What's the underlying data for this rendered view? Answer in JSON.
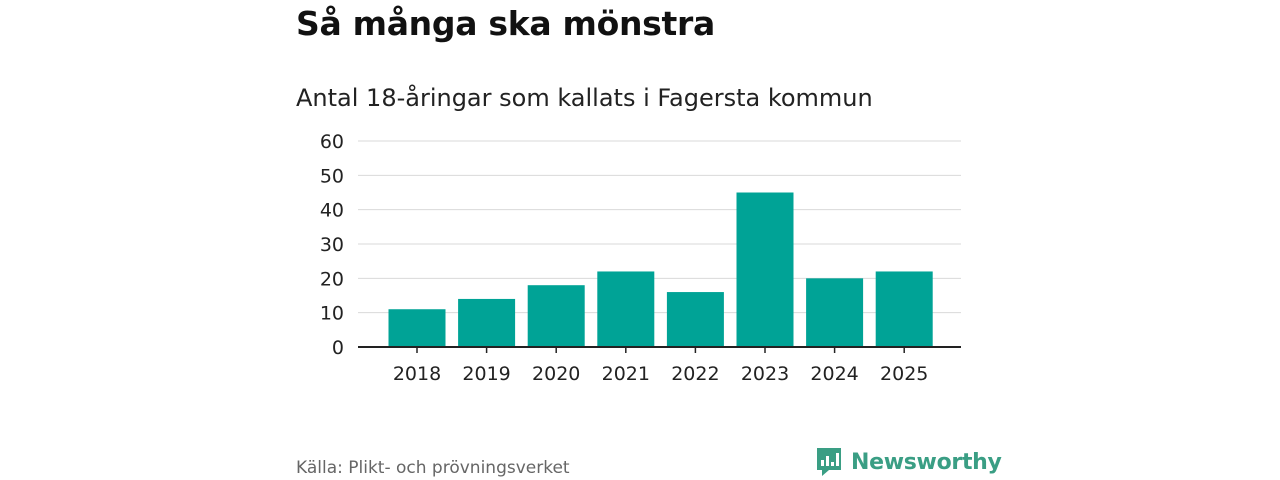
{
  "header": {
    "title": "Så många ska mönstra",
    "subtitle": "Antal 18-åringar som kallats i Fagersta kommun"
  },
  "chart_data": {
    "type": "bar",
    "title": "Så många ska mönstra",
    "subtitle": "Antal 18-åringar som kallats i Fagersta kommun",
    "categories": [
      "2018",
      "2019",
      "2020",
      "2021",
      "2022",
      "2023",
      "2024",
      "2025"
    ],
    "values": [
      11,
      14,
      18,
      22,
      16,
      45,
      20,
      22
    ],
    "xlabel": "",
    "ylabel": "",
    "ylim": [
      0,
      60
    ],
    "yticks": [
      0,
      10,
      20,
      30,
      40,
      50,
      60
    ],
    "grid": true,
    "legend": "none",
    "bar_color": "#00a396"
  },
  "footer": {
    "source": "Källa: Plikt- och prövningsverket",
    "brand": "Newsworthy",
    "brand_icon": "newsworthy-logo-icon",
    "brand_color": "#3a9e84"
  }
}
